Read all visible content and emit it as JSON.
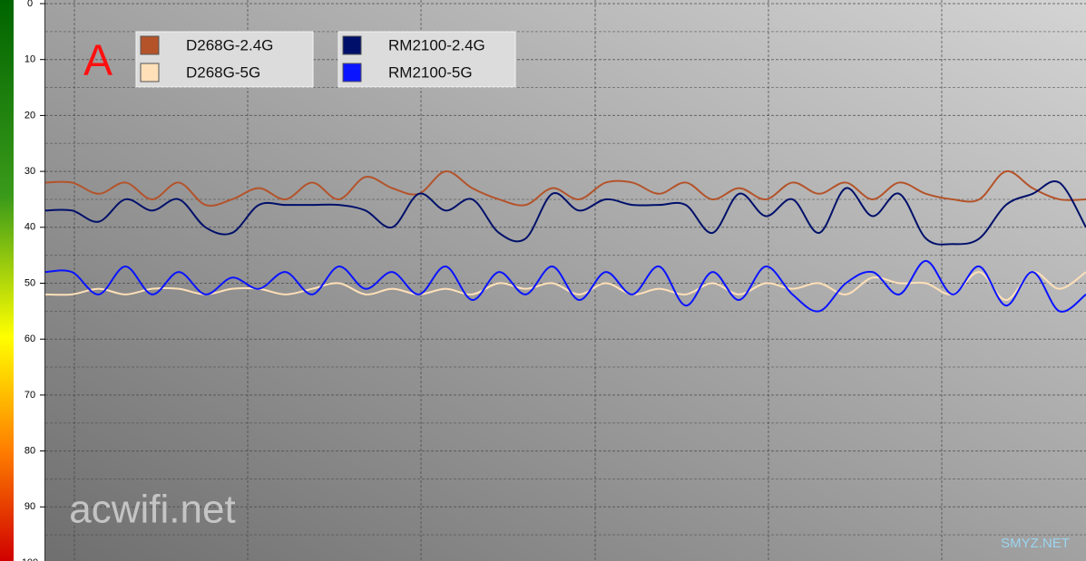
{
  "chart_data": {
    "type": "line",
    "annotation": "A",
    "watermark": "acwifi.net",
    "watermark2": "SMYZ.NET",
    "ylim": [
      0,
      100
    ],
    "y_reversed": true,
    "yticks": [
      0,
      10,
      20,
      30,
      40,
      50,
      60,
      70,
      80,
      90,
      100
    ],
    "grid": true,
    "series": [
      {
        "name": "D268G-2.4G",
        "color": "#b4532a",
        "values": [
          32,
          32,
          34,
          32,
          35,
          32,
          36,
          35,
          33,
          35,
          32,
          35,
          31,
          33,
          34,
          30,
          33,
          35,
          36,
          33,
          35,
          32,
          32,
          34,
          32,
          35,
          33,
          35,
          32,
          34,
          32,
          35,
          32,
          34,
          35,
          35,
          30,
          33,
          35,
          35
        ]
      },
      {
        "name": "D268G-5G",
        "color": "#ffe0b8",
        "values": [
          52,
          52,
          51,
          52,
          51,
          51,
          52,
          51,
          51,
          52,
          51,
          50,
          52,
          51,
          52,
          51,
          52,
          50,
          51,
          50,
          52,
          50,
          52,
          51,
          52,
          50,
          52,
          50,
          51,
          50,
          52,
          49,
          50,
          50,
          52,
          48,
          53,
          48,
          51,
          48
        ]
      },
      {
        "name": "RM2100-2.4G",
        "color": "#00106a",
        "values": [
          37,
          37,
          39,
          35,
          37,
          35,
          40,
          41,
          36,
          36,
          36,
          36,
          37,
          40,
          34,
          37,
          35,
          41,
          42,
          34,
          37,
          35,
          36,
          36,
          36,
          41,
          34,
          38,
          35,
          41,
          33,
          38,
          34,
          42,
          43,
          42,
          36,
          34,
          32,
          40
        ]
      },
      {
        "name": "RM2100-5G",
        "color": "#0a14ff",
        "values": [
          48,
          48,
          52,
          47,
          52,
          48,
          52,
          49,
          51,
          48,
          52,
          47,
          51,
          48,
          52,
          47,
          53,
          48,
          52,
          47,
          53,
          48,
          52,
          47,
          54,
          48,
          53,
          47,
          52,
          55,
          50,
          48,
          52,
          46,
          52,
          47,
          54,
          48,
          55,
          52
        ]
      }
    ]
  }
}
